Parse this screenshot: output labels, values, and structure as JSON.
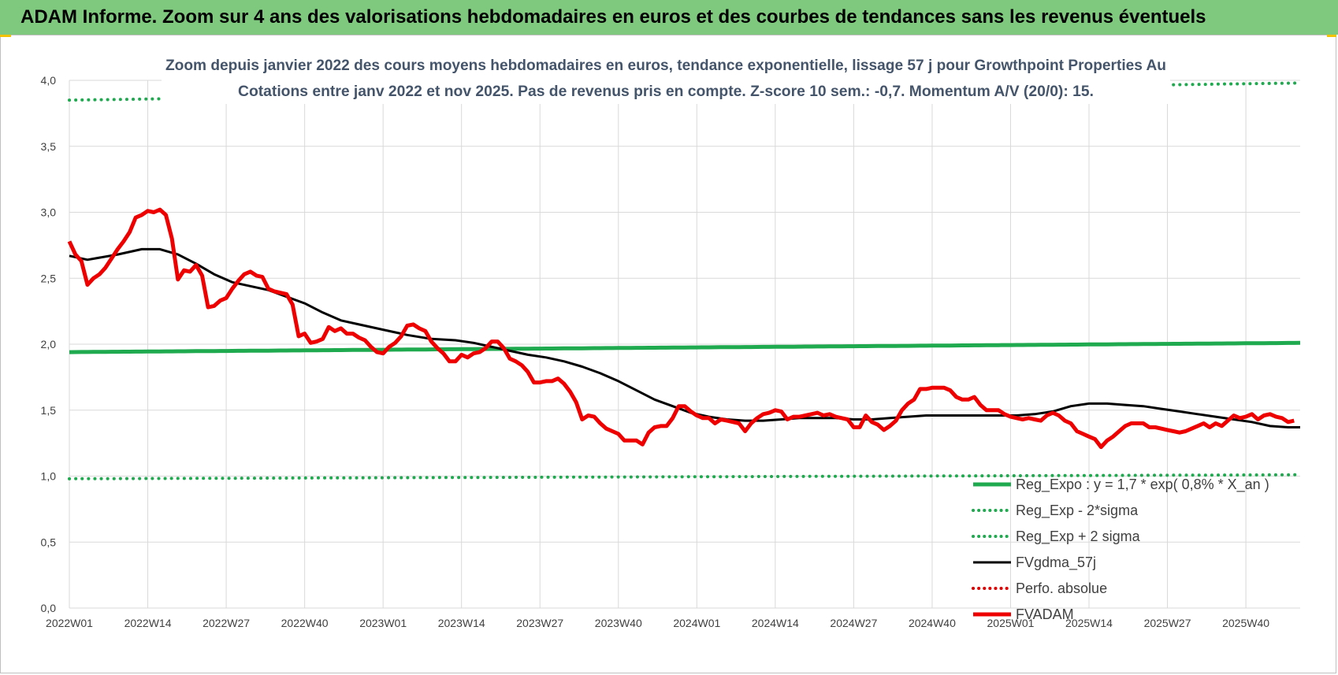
{
  "header": {
    "title": "ADAM Informe. Zoom sur 4 ans des valorisations hebdomadaires en euros et des courbes de tendances sans les revenus éventuels"
  },
  "chart_data": {
    "type": "line",
    "title": "Zoom depuis janvier 2022 des cours moyens hebdomadaires en euros, tendance exponentielle, lissage 57 j pour Growthpoint Properties Au",
    "subtitle": "Cotations entre janv 2022 et nov 2025. Pas de revenus pris en compte. Z-score 10 sem.: -0,7. Momentum A/V (20/0): 15.",
    "xlabel": "",
    "ylabel": "",
    "ylim": [
      0,
      4
    ],
    "yticks": [
      "0,0",
      "0,5",
      "1,0",
      "1,5",
      "2,0",
      "2,5",
      "3,0",
      "3,5",
      "4,0"
    ],
    "x_ticks": [
      "2022W01",
      "2022W14",
      "2022W27",
      "2022W40",
      "2023W01",
      "2023W14",
      "2023W27",
      "2023W40",
      "2024W01",
      "2024W14",
      "2024W27",
      "2024W40",
      "2025W01",
      "2025W14",
      "2025W27",
      "2025W40"
    ],
    "n_weeks": 205,
    "grid": true,
    "legend_position": "bottom-right",
    "series": [
      {
        "name": "Reg_Expo : y = 1,7 * exp( 0,8% *  X_an )",
        "color": "#1faa4f",
        "style": "solid",
        "points": [
          [
            0,
            1.94
          ],
          [
            204,
            2.01
          ]
        ]
      },
      {
        "name": "Reg_Exp - 2*sigma",
        "color": "#1faa4f",
        "style": "dotted",
        "points": [
          [
            0,
            0.98
          ],
          [
            204,
            1.01
          ]
        ]
      },
      {
        "name": "Reg_Exp + 2 sigma",
        "color": "#1faa4f",
        "style": "dotted",
        "points": [
          [
            0,
            3.85
          ],
          [
            204,
            3.98
          ]
        ]
      },
      {
        "name": "FVgdma_57j",
        "color": "#000000",
        "style": "solid",
        "points": [
          [
            0,
            2.67
          ],
          [
            3,
            2.64
          ],
          [
            8,
            2.68
          ],
          [
            12,
            2.72
          ],
          [
            15,
            2.72
          ],
          [
            18,
            2.68
          ],
          [
            21,
            2.61
          ],
          [
            24,
            2.53
          ],
          [
            27,
            2.47
          ],
          [
            30,
            2.44
          ],
          [
            33,
            2.41
          ],
          [
            36,
            2.36
          ],
          [
            39,
            2.31
          ],
          [
            42,
            2.24
          ],
          [
            45,
            2.18
          ],
          [
            48,
            2.15
          ],
          [
            52,
            2.11
          ],
          [
            56,
            2.07
          ],
          [
            60,
            2.04
          ],
          [
            64,
            2.03
          ],
          [
            67,
            2.01
          ],
          [
            70,
            1.98
          ],
          [
            73,
            1.95
          ],
          [
            76,
            1.92
          ],
          [
            79,
            1.9
          ],
          [
            82,
            1.87
          ],
          [
            85,
            1.83
          ],
          [
            88,
            1.78
          ],
          [
            91,
            1.72
          ],
          [
            94,
            1.65
          ],
          [
            97,
            1.58
          ],
          [
            100,
            1.53
          ],
          [
            103,
            1.48
          ],
          [
            106,
            1.45
          ],
          [
            109,
            1.43
          ],
          [
            112,
            1.42
          ],
          [
            115,
            1.42
          ],
          [
            118,
            1.43
          ],
          [
            121,
            1.44
          ],
          [
            124,
            1.44
          ],
          [
            127,
            1.44
          ],
          [
            130,
            1.43
          ],
          [
            133,
            1.43
          ],
          [
            136,
            1.44
          ],
          [
            139,
            1.45
          ],
          [
            142,
            1.46
          ],
          [
            145,
            1.46
          ],
          [
            148,
            1.46
          ],
          [
            151,
            1.46
          ],
          [
            154,
            1.46
          ],
          [
            157,
            1.46
          ],
          [
            160,
            1.47
          ],
          [
            163,
            1.49
          ],
          [
            166,
            1.53
          ],
          [
            169,
            1.55
          ],
          [
            172,
            1.55
          ],
          [
            175,
            1.54
          ],
          [
            178,
            1.53
          ],
          [
            181,
            1.51
          ],
          [
            184,
            1.49
          ],
          [
            187,
            1.47
          ],
          [
            190,
            1.45
          ],
          [
            193,
            1.43
          ],
          [
            196,
            1.41
          ],
          [
            199,
            1.38
          ],
          [
            202,
            1.37
          ],
          [
            204,
            1.37
          ]
        ]
      },
      {
        "name": "Perfo. absolue",
        "color": "#e00000",
        "style": "dotted",
        "points": []
      },
      {
        "name": "FVADAM",
        "color": "#ee0000",
        "style": "solid",
        "points": [
          [
            0,
            2.78
          ],
          [
            1,
            2.68
          ],
          [
            2,
            2.63
          ],
          [
            3,
            2.45
          ],
          [
            4,
            2.5
          ],
          [
            5,
            2.53
          ],
          [
            6,
            2.58
          ],
          [
            7,
            2.65
          ],
          [
            8,
            2.72
          ],
          [
            9,
            2.78
          ],
          [
            10,
            2.85
          ],
          [
            11,
            2.96
          ],
          [
            12,
            2.98
          ],
          [
            13,
            3.01
          ],
          [
            14,
            3.0
          ],
          [
            15,
            3.02
          ],
          [
            16,
            2.98
          ],
          [
            17,
            2.8
          ],
          [
            18,
            2.49
          ],
          [
            19,
            2.56
          ],
          [
            20,
            2.55
          ],
          [
            21,
            2.6
          ],
          [
            22,
            2.52
          ],
          [
            23,
            2.28
          ],
          [
            24,
            2.29
          ],
          [
            25,
            2.33
          ],
          [
            26,
            2.35
          ],
          [
            27,
            2.42
          ],
          [
            28,
            2.48
          ],
          [
            29,
            2.53
          ],
          [
            30,
            2.55
          ],
          [
            31,
            2.52
          ],
          [
            32,
            2.51
          ],
          [
            33,
            2.42
          ],
          [
            34,
            2.4
          ],
          [
            35,
            2.39
          ],
          [
            36,
            2.38
          ],
          [
            37,
            2.3
          ],
          [
            38,
            2.06
          ],
          [
            39,
            2.08
          ],
          [
            40,
            2.01
          ],
          [
            41,
            2.02
          ],
          [
            42,
            2.04
          ],
          [
            43,
            2.13
          ],
          [
            44,
            2.1
          ],
          [
            45,
            2.12
          ],
          [
            46,
            2.08
          ],
          [
            47,
            2.08
          ],
          [
            48,
            2.05
          ],
          [
            49,
            2.03
          ],
          [
            50,
            1.98
          ],
          [
            51,
            1.94
          ],
          [
            52,
            1.93
          ],
          [
            53,
            1.98
          ],
          [
            54,
            2.01
          ],
          [
            55,
            2.06
          ],
          [
            56,
            2.14
          ],
          [
            57,
            2.15
          ],
          [
            58,
            2.12
          ],
          [
            59,
            2.1
          ],
          [
            60,
            2.02
          ],
          [
            61,
            1.97
          ],
          [
            62,
            1.93
          ],
          [
            63,
            1.87
          ],
          [
            64,
            1.87
          ],
          [
            65,
            1.92
          ],
          [
            66,
            1.9
          ],
          [
            67,
            1.93
          ],
          [
            68,
            1.94
          ],
          [
            69,
            1.97
          ],
          [
            70,
            2.02
          ],
          [
            71,
            2.02
          ],
          [
            72,
            1.97
          ],
          [
            73,
            1.89
          ],
          [
            74,
            1.87
          ],
          [
            75,
            1.84
          ],
          [
            76,
            1.79
          ],
          [
            77,
            1.71
          ],
          [
            78,
            1.71
          ],
          [
            79,
            1.72
          ],
          [
            80,
            1.72
          ],
          [
            81,
            1.74
          ],
          [
            82,
            1.7
          ],
          [
            83,
            1.64
          ],
          [
            84,
            1.56
          ],
          [
            85,
            1.43
          ],
          [
            86,
            1.46
          ],
          [
            87,
            1.45
          ],
          [
            88,
            1.4
          ],
          [
            89,
            1.36
          ],
          [
            90,
            1.34
          ],
          [
            91,
            1.32
          ],
          [
            92,
            1.27
          ],
          [
            93,
            1.27
          ],
          [
            94,
            1.27
          ],
          [
            95,
            1.24
          ],
          [
            96,
            1.33
          ],
          [
            97,
            1.37
          ],
          [
            98,
            1.38
          ],
          [
            99,
            1.38
          ],
          [
            100,
            1.44
          ],
          [
            101,
            1.53
          ],
          [
            102,
            1.53
          ],
          [
            103,
            1.49
          ],
          [
            104,
            1.46
          ],
          [
            105,
            1.44
          ],
          [
            106,
            1.44
          ],
          [
            107,
            1.4
          ],
          [
            108,
            1.43
          ],
          [
            109,
            1.42
          ],
          [
            110,
            1.41
          ],
          [
            111,
            1.4
          ],
          [
            112,
            1.34
          ],
          [
            113,
            1.4
          ],
          [
            114,
            1.44
          ],
          [
            115,
            1.47
          ],
          [
            116,
            1.48
          ],
          [
            117,
            1.5
          ],
          [
            118,
            1.49
          ],
          [
            119,
            1.43
          ],
          [
            120,
            1.45
          ],
          [
            121,
            1.45
          ],
          [
            122,
            1.46
          ],
          [
            123,
            1.47
          ],
          [
            124,
            1.48
          ],
          [
            125,
            1.46
          ],
          [
            126,
            1.47
          ],
          [
            127,
            1.45
          ],
          [
            128,
            1.44
          ],
          [
            129,
            1.43
          ],
          [
            130,
            1.37
          ],
          [
            131,
            1.37
          ],
          [
            132,
            1.46
          ],
          [
            133,
            1.41
          ],
          [
            134,
            1.39
          ],
          [
            135,
            1.35
          ],
          [
            136,
            1.38
          ],
          [
            137,
            1.42
          ],
          [
            138,
            1.5
          ],
          [
            139,
            1.55
          ],
          [
            140,
            1.58
          ],
          [
            141,
            1.66
          ],
          [
            142,
            1.66
          ],
          [
            143,
            1.67
          ],
          [
            144,
            1.67
          ],
          [
            145,
            1.67
          ],
          [
            146,
            1.65
          ],
          [
            147,
            1.6
          ],
          [
            148,
            1.58
          ],
          [
            149,
            1.58
          ],
          [
            150,
            1.6
          ],
          [
            151,
            1.54
          ],
          [
            152,
            1.5
          ],
          [
            153,
            1.5
          ],
          [
            154,
            1.5
          ],
          [
            155,
            1.47
          ],
          [
            156,
            1.45
          ],
          [
            157,
            1.44
          ],
          [
            158,
            1.43
          ],
          [
            159,
            1.44
          ],
          [
            160,
            1.43
          ],
          [
            161,
            1.42
          ],
          [
            162,
            1.46
          ],
          [
            163,
            1.48
          ],
          [
            164,
            1.46
          ],
          [
            165,
            1.42
          ],
          [
            166,
            1.4
          ],
          [
            167,
            1.34
          ],
          [
            168,
            1.32
          ],
          [
            169,
            1.3
          ],
          [
            170,
            1.28
          ],
          [
            171,
            1.22
          ],
          [
            172,
            1.27
          ],
          [
            173,
            1.3
          ],
          [
            174,
            1.34
          ],
          [
            175,
            1.38
          ],
          [
            176,
            1.4
          ],
          [
            177,
            1.4
          ],
          [
            178,
            1.4
          ],
          [
            179,
            1.37
          ],
          [
            180,
            1.37
          ],
          [
            181,
            1.36
          ],
          [
            182,
            1.35
          ],
          [
            183,
            1.34
          ],
          [
            184,
            1.33
          ],
          [
            185,
            1.34
          ],
          [
            186,
            1.36
          ],
          [
            187,
            1.38
          ],
          [
            188,
            1.4
          ],
          [
            189,
            1.37
          ],
          [
            190,
            1.4
          ],
          [
            191,
            1.38
          ],
          [
            192,
            1.42
          ],
          [
            193,
            1.46
          ],
          [
            194,
            1.44
          ],
          [
            195,
            1.45
          ],
          [
            196,
            1.47
          ],
          [
            197,
            1.43
          ],
          [
            198,
            1.46
          ],
          [
            199,
            1.47
          ],
          [
            200,
            1.45
          ],
          [
            201,
            1.44
          ],
          [
            202,
            1.41
          ],
          [
            203,
            1.42
          ]
        ]
      }
    ]
  }
}
